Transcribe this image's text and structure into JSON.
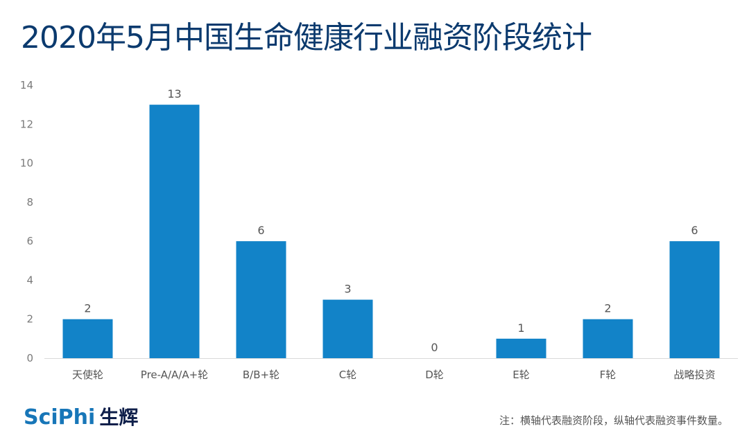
{
  "title": "2020年5月中国生命健康行业融资阶段统计",
  "logo": {
    "latin": "SciPhi",
    "chinese": "生辉"
  },
  "note": "注：横轴代表融资阶段，纵轴代表融资事件数量。",
  "colors": {
    "bar": "#1283c8",
    "title": "#0b3a6e"
  },
  "chart_data": {
    "type": "bar",
    "title": "2020年5月中国生命健康行业融资阶段统计",
    "categories": [
      "天使轮",
      "Pre-A/A/A+轮",
      "B/B+轮",
      "C轮",
      "D轮",
      "E轮",
      "F轮",
      "战略投资"
    ],
    "values": [
      2,
      13,
      6,
      3,
      0,
      1,
      2,
      6
    ],
    "ylim": [
      0,
      14
    ],
    "yticks": [
      "0",
      "2",
      "4",
      "6",
      "8",
      "10",
      "12",
      "14"
    ],
    "grid": false,
    "data_labels": true
  }
}
